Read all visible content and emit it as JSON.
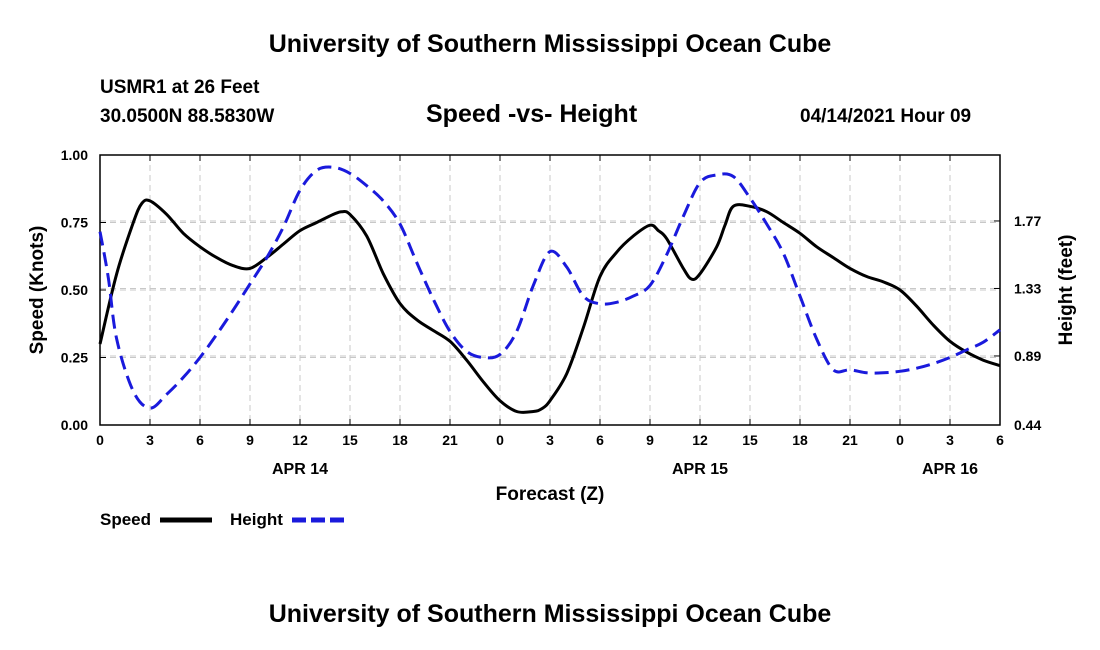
{
  "header": {
    "title_top": "University of Southern Mississippi Ocean Cube",
    "station": "USMR1 at 26 Feet",
    "coords": "30.0500N  88.5830W",
    "datetime": "04/14/2021 Hour 09",
    "title_bottom": "University of Southern Mississippi Ocean Cube"
  },
  "chart_data": {
    "type": "line",
    "title": "Speed -vs- Height",
    "xlabel": "Forecast (Z)",
    "ylabel": "Speed (Knots)",
    "y2label": "Height (feet)",
    "x_ticks": [
      0,
      3,
      6,
      9,
      12,
      15,
      18,
      21,
      24,
      27,
      30,
      33,
      36,
      39,
      42,
      45,
      48,
      51,
      54
    ],
    "x_tick_labels": [
      "0",
      "3",
      "6",
      "9",
      "12",
      "15",
      "18",
      "21",
      "0",
      "3",
      "6",
      "9",
      "12",
      "15",
      "18",
      "21",
      "0",
      "3",
      "6"
    ],
    "xlim": [
      0,
      54
    ],
    "date_labels": [
      {
        "x": 12,
        "label": "APR 14"
      },
      {
        "x": 36,
        "label": "APR 15"
      },
      {
        "x": 51,
        "label": "APR 16"
      }
    ],
    "ylim": [
      0,
      1
    ],
    "y_ticks": [
      0,
      0.25,
      0.5,
      0.75,
      1.0
    ],
    "y_tick_labels": [
      "0.00",
      "0.25",
      "0.50",
      "0.75",
      "1.00"
    ],
    "y2lim": [
      0.44,
      2.2
    ],
    "y2_ticks": [
      0.44,
      0.89,
      1.33,
      1.77
    ],
    "y2_tick_labels": [
      "0.44",
      "0.89",
      "1.33",
      "1.77"
    ],
    "grid": true,
    "legend": [
      {
        "name": "Speed",
        "color": "#000000",
        "dashed": false
      },
      {
        "name": "Height",
        "color": "#1a1adc",
        "dashed": true
      }
    ],
    "series": [
      {
        "name": "Speed",
        "axis": "left",
        "color": "#000000",
        "x": [
          0,
          1,
          2,
          2.5,
          3,
          4,
          5,
          6,
          7,
          8,
          9,
          10,
          11,
          12,
          13,
          14,
          14.5,
          15,
          16,
          17,
          18,
          19,
          20,
          21,
          22,
          23,
          24,
          25,
          26,
          26.5,
          27,
          28,
          29,
          30,
          31,
          32,
          33,
          33.5,
          34,
          35,
          35.5,
          36,
          37,
          37.5,
          38,
          39,
          40,
          41,
          42,
          43,
          44,
          45,
          46,
          47,
          48,
          49,
          50,
          51,
          52,
          53,
          54
        ],
        "values": [
          0.3,
          0.56,
          0.75,
          0.82,
          0.83,
          0.78,
          0.71,
          0.66,
          0.62,
          0.59,
          0.58,
          0.62,
          0.67,
          0.72,
          0.75,
          0.78,
          0.79,
          0.78,
          0.7,
          0.56,
          0.45,
          0.39,
          0.35,
          0.31,
          0.24,
          0.16,
          0.09,
          0.05,
          0.05,
          0.06,
          0.09,
          0.19,
          0.36,
          0.55,
          0.64,
          0.7,
          0.74,
          0.72,
          0.69,
          0.58,
          0.54,
          0.56,
          0.66,
          0.74,
          0.81,
          0.81,
          0.79,
          0.75,
          0.71,
          0.66,
          0.62,
          0.58,
          0.55,
          0.53,
          0.5,
          0.44,
          0.37,
          0.31,
          0.27,
          0.24,
          0.22
        ]
      },
      {
        "name": "Height",
        "axis": "right",
        "color": "#1a1adc",
        "x": [
          0,
          0.5,
          1,
          2,
          3,
          4,
          5,
          6,
          7,
          8,
          9,
          10,
          11,
          12,
          13,
          14,
          15,
          16,
          17,
          18,
          19,
          20,
          21,
          22,
          23,
          24,
          25,
          26,
          27,
          28,
          29,
          30,
          31,
          32,
          33,
          34,
          35,
          36,
          37,
          38,
          39,
          40,
          41,
          42,
          43,
          44,
          45,
          46,
          47,
          48,
          49,
          50,
          51,
          52,
          53,
          54
        ],
        "values": [
          1.7,
          1.4,
          1.0,
          0.66,
          0.55,
          0.64,
          0.75,
          0.88,
          1.03,
          1.19,
          1.36,
          1.53,
          1.73,
          1.97,
          2.1,
          2.12,
          2.08,
          2.0,
          1.9,
          1.75,
          1.5,
          1.26,
          1.05,
          0.92,
          0.88,
          0.9,
          1.05,
          1.35,
          1.57,
          1.47,
          1.28,
          1.23,
          1.24,
          1.28,
          1.35,
          1.55,
          1.8,
          2.02,
          2.07,
          2.06,
          1.92,
          1.75,
          1.56,
          1.28,
          1.0,
          0.8,
          0.8,
          0.78,
          0.78,
          0.79,
          0.81,
          0.84,
          0.88,
          0.93,
          0.98,
          1.06
        ]
      }
    ]
  }
}
